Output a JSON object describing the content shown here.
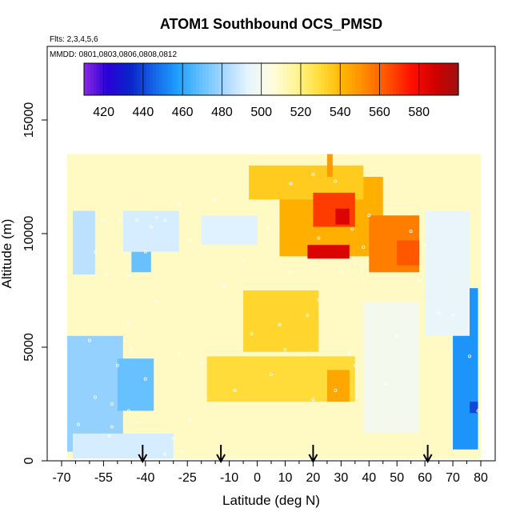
{
  "chart_data": {
    "type": "heatmap",
    "title": "ATOM1 Southbound OCS_PMSD",
    "subtitle_flights": "Flts: 2,3,4,5,6",
    "subtitle_dates": "MMDD: 0801,0803,0806,0808,0812",
    "xlabel": "Latitude (deg N)",
    "ylabel": "Altitude (m)",
    "xlim": [
      -70,
      85
    ],
    "ylim": [
      0,
      17500
    ],
    "x_ticks": [
      -70,
      -55,
      -40,
      -25,
      -10,
      0,
      10,
      20,
      30,
      40,
      50,
      60,
      70,
      80
    ],
    "x_tick_labels": [
      "-70",
      "-55",
      "-40",
      "-25",
      "-10",
      "0",
      "10",
      "20",
      "30",
      "40",
      "50",
      "60",
      "70",
      "80"
    ],
    "x_minor_ticks": [
      -65,
      -60,
      -50,
      -45,
      -35,
      -30,
      -20,
      -15,
      -5,
      5,
      15,
      25,
      35,
      45,
      55,
      65,
      75
    ],
    "y_ticks": [
      0,
      5000,
      10000,
      15000
    ],
    "y_tick_labels": [
      "0",
      "5000",
      "10000",
      "15000"
    ],
    "colorbar": {
      "min": 410,
      "max": 600,
      "ticks": [
        420,
        440,
        460,
        480,
        500,
        520,
        540,
        560,
        580
      ],
      "tick_labels": [
        "420",
        "440",
        "460",
        "480",
        "500",
        "520",
        "540",
        "560",
        "580"
      ],
      "colors": [
        "#8a2be2",
        "#2b00d9",
        "#0a25c8",
        "#1565e8",
        "#1ea0ff",
        "#63c0ff",
        "#a8d8ff",
        "#e6f4ff",
        "#fffde0",
        "#fff59a",
        "#ffe040",
        "#ffb800",
        "#ff8a00",
        "#ff5000",
        "#ff0f00",
        "#d00000",
        "#a01010"
      ]
    },
    "regions": [
      {
        "x": [
          -68,
          80
        ],
        "y": [
          100,
          13500
        ],
        "value": 510
      },
      {
        "x": [
          -68,
          -48
        ],
        "y": [
          400,
          5500
        ],
        "value": 478
      },
      {
        "x": [
          -50,
          -37
        ],
        "y": [
          2200,
          4500
        ],
        "value": 470
      },
      {
        "x": [
          -66,
          -58
        ],
        "y": [
          8200,
          11000
        ],
        "value": 485
      },
      {
        "x": [
          -48,
          -28
        ],
        "y": [
          9200,
          11000
        ],
        "value": 490
      },
      {
        "x": [
          -45,
          -38
        ],
        "y": [
          8300,
          9200
        ],
        "value": 470
      },
      {
        "x": [
          -20,
          0
        ],
        "y": [
          9500,
          10800
        ],
        "value": 492
      },
      {
        "x": [
          -66,
          -30
        ],
        "y": [
          100,
          1200
        ],
        "value": 490
      },
      {
        "x": [
          70,
          79
        ],
        "y": [
          500,
          7600
        ],
        "value": 455
      },
      {
        "x": [
          76,
          79
        ],
        "y": [
          2100,
          2600
        ],
        "value": 440
      },
      {
        "x": [
          60,
          76
        ],
        "y": [
          5500,
          11000
        ],
        "value": 495
      },
      {
        "x": [
          38,
          58
        ],
        "y": [
          1200,
          7000
        ],
        "value": 500
      },
      {
        "x": [
          -5,
          22
        ],
        "y": [
          4800,
          7500
        ],
        "value": 532
      },
      {
        "x": [
          -18,
          35
        ],
        "y": [
          2600,
          4600
        ],
        "value": 530
      },
      {
        "x": [
          25,
          33
        ],
        "y": [
          2600,
          4000
        ],
        "value": 545
      },
      {
        "x": [
          8,
          45
        ],
        "y": [
          9000,
          12500
        ],
        "value": 543
      },
      {
        "x": [
          -3,
          38
        ],
        "y": [
          11500,
          13000
        ],
        "value": 535
      },
      {
        "x": [
          20,
          35
        ],
        "y": [
          10300,
          11800
        ],
        "value": 568
      },
      {
        "x": [
          28,
          33
        ],
        "y": [
          10400,
          11100
        ],
        "value": 585
      },
      {
        "x": [
          18,
          33
        ],
        "y": [
          8900,
          9500
        ],
        "value": 585
      },
      {
        "x": [
          40,
          58
        ],
        "y": [
          8300,
          10800
        ],
        "value": 555
      },
      {
        "x": [
          50,
          58
        ],
        "y": [
          8600,
          9700
        ],
        "value": 563
      },
      {
        "x": [
          25,
          27
        ],
        "y": [
          12500,
          13500
        ],
        "value": 548
      }
    ],
    "sample_points": [
      [
        -55,
        10600
      ],
      [
        -49,
        10600
      ],
      [
        -43,
        10600
      ],
      [
        -33,
        10600
      ],
      [
        -38,
        10300
      ],
      [
        -40,
        9200
      ],
      [
        -58,
        9200
      ],
      [
        -54,
        8200
      ],
      [
        -46,
        8200
      ],
      [
        -36,
        7000
      ],
      [
        -46,
        6000
      ],
      [
        -60,
        5300
      ],
      [
        -50,
        4200
      ],
      [
        -40,
        3600
      ],
      [
        -58,
        2800
      ],
      [
        -52,
        2500
      ],
      [
        -46,
        2200
      ],
      [
        -64,
        1600
      ],
      [
        -52,
        1500
      ],
      [
        -30,
        1000
      ],
      [
        -24,
        1800
      ],
      [
        -8,
        3100
      ],
      [
        5,
        3800
      ],
      [
        20,
        2700
      ],
      [
        28,
        3100
      ],
      [
        35,
        4200
      ],
      [
        10,
        4900
      ],
      [
        -2,
        5600
      ],
      [
        8,
        6000
      ],
      [
        18,
        6400
      ],
      [
        22,
        7100
      ],
      [
        30,
        8300
      ],
      [
        38,
        9400
      ],
      [
        22,
        9800
      ],
      [
        34,
        10200
      ],
      [
        40,
        10800
      ],
      [
        28,
        12300
      ],
      [
        20,
        12600
      ],
      [
        12,
        12200
      ],
      [
        -15,
        11500
      ],
      [
        -28,
        11300
      ],
      [
        -36,
        10700
      ],
      [
        55,
        10100
      ],
      [
        60,
        9500
      ],
      [
        58,
        7900
      ],
      [
        70,
        6400
      ],
      [
        76,
        4600
      ],
      [
        79,
        2200
      ],
      [
        65,
        6500
      ],
      [
        50,
        5500
      ],
      [
        46,
        3400
      ],
      [
        -20,
        4300
      ],
      [
        -28,
        4700
      ],
      [
        -12,
        7700
      ],
      [
        -5,
        8800
      ],
      [
        4,
        10200
      ],
      [
        -24,
        9700
      ],
      [
        -45,
        4900
      ],
      [
        -53,
        1100
      ],
      [
        -33,
        300
      ],
      [
        -27,
        400
      ],
      [
        33,
        4700
      ],
      [
        12,
        8300
      ]
    ],
    "annotations": {
      "arrows_at_latitude": [
        -41,
        -13,
        20,
        61
      ]
    }
  }
}
